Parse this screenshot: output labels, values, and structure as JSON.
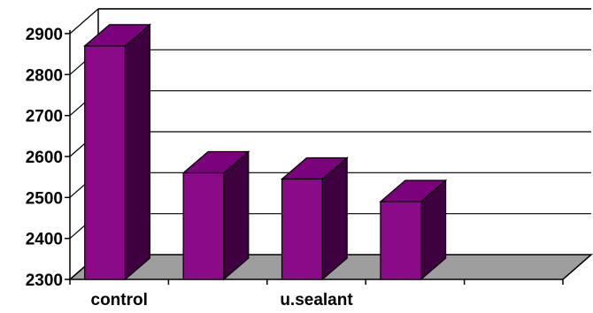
{
  "chart_data": {
    "type": "bar",
    "style": "3d-column",
    "categories": [
      "control",
      "",
      "u.sealant",
      ""
    ],
    "values": [
      2870,
      2560,
      2545,
      2490
    ],
    "ylim": [
      2300,
      2900
    ],
    "yticks": [
      2300,
      2400,
      2500,
      2600,
      2700,
      2800,
      2900
    ],
    "ytick_labels": [
      "2300",
      "2400",
      "2500",
      "2600",
      "2700",
      "2800",
      "2900"
    ],
    "grid": true,
    "legend": "none",
    "colors": {
      "bar_front": "#8B0A87",
      "bar_side": "#3F0040",
      "bar_top": "#7B007B",
      "floor": "#9E9E9E",
      "grid": "#000000"
    }
  }
}
